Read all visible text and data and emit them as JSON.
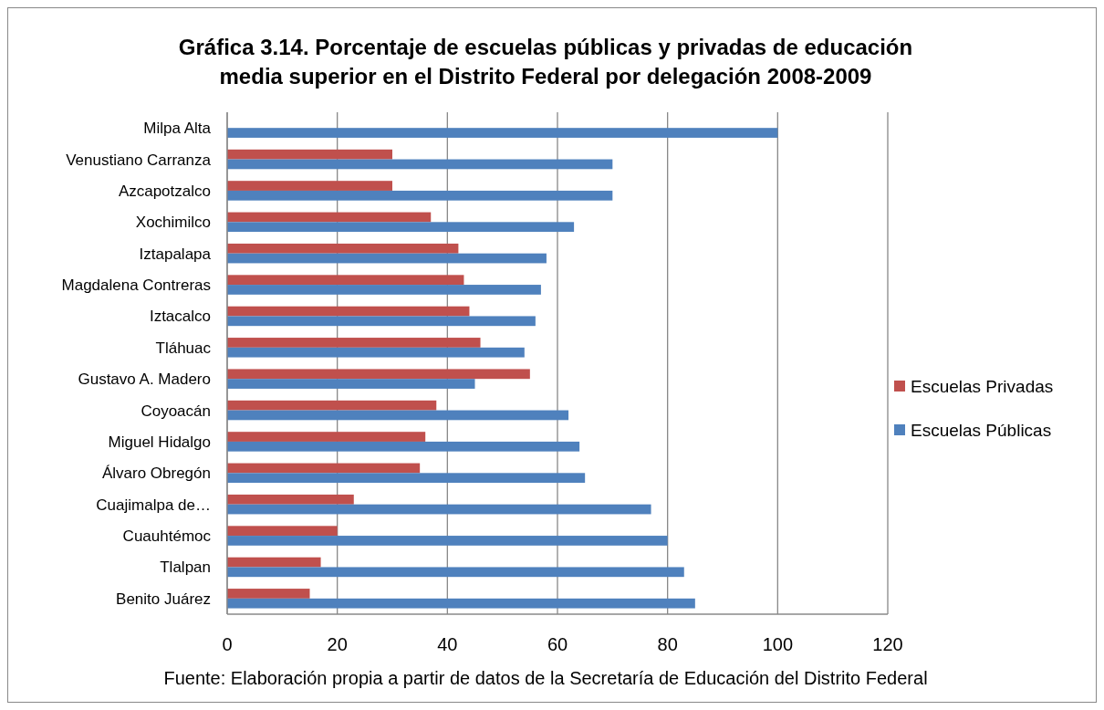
{
  "chart_data": {
    "type": "bar",
    "orientation": "horizontal",
    "title": "Gráfica 3.14. Porcentaje de escuelas públicas y privadas de educación media superior en el Distrito Federal por delegación 2008-2009",
    "categories": [
      "Milpa Alta",
      "Venustiano Carranza",
      "Azcapotzalco",
      "Xochimilco",
      "Iztapalapa",
      "Magdalena Contreras",
      "Iztacalco",
      "Tláhuac",
      "Gustavo A. Madero",
      "Coyoacán",
      "Miguel Hidalgo",
      "Álvaro Obregón",
      "Cuajimalpa de…",
      "Cuauhtémoc",
      "Tlalpan",
      "Benito Juárez"
    ],
    "series": [
      {
        "name": "Escuelas Privadas",
        "color": "#c0504d",
        "values": [
          0,
          30,
          30,
          37,
          42,
          43,
          44,
          46,
          55,
          38,
          36,
          35,
          23,
          20,
          17,
          15
        ]
      },
      {
        "name": "Escuelas Públicas",
        "color": "#4f81bd",
        "values": [
          100,
          70,
          70,
          63,
          58,
          57,
          56,
          54,
          45,
          62,
          64,
          65,
          77,
          80,
          83,
          85
        ]
      }
    ],
    "xlim": [
      0,
      120
    ],
    "xticks": [
      0,
      20,
      40,
      60,
      80,
      100,
      120
    ],
    "grid": "x",
    "legend": "right",
    "annotations": [
      "Fuente: Elaboración propia a partir de datos de la Secretaría de Educación del Distrito Federal"
    ]
  }
}
